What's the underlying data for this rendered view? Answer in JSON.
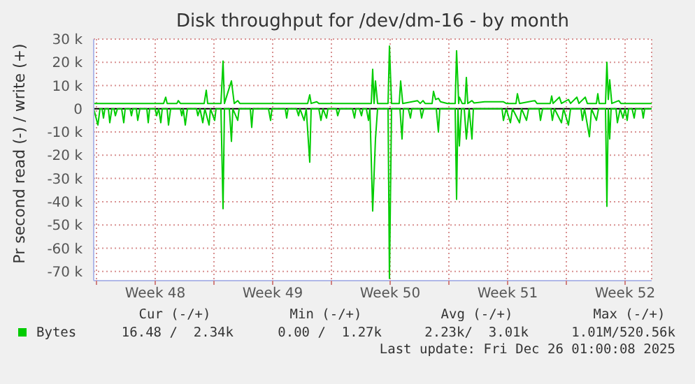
{
  "chart_data": {
    "type": "line",
    "title": "Disk throughput for /dev/dm-16 - by month",
    "ylabel": "Pr second read (-) / write (+)",
    "xlim": [
      "2025-11-23T20:00",
      "2025-12-27T02:00"
    ],
    "xticks": [
      {
        "value": "2025-11-24",
        "label": null
      },
      {
        "value": "2025-11-27T12:00",
        "label": "Week 48"
      },
      {
        "value": "2025-12-01",
        "label": null
      },
      {
        "value": "2025-12-04T12:00",
        "label": "Week 49"
      },
      {
        "value": "2025-12-08",
        "label": null
      },
      {
        "value": "2025-12-11T12:00",
        "label": "Week 50"
      },
      {
        "value": "2025-12-15",
        "label": null
      },
      {
        "value": "2025-12-18T12:00",
        "label": "Week 51"
      },
      {
        "value": "2025-12-22",
        "label": null
      },
      {
        "value": "2025-12-25T12:00",
        "label": "Week 52"
      }
    ],
    "ylim": [
      -74000,
      30000
    ],
    "yticks": [
      {
        "value": 30000,
        "label": "30 k"
      },
      {
        "value": 20000,
        "label": "20 k"
      },
      {
        "value": 10000,
        "label": "10 k"
      },
      0,
      {
        "value": -10000,
        "label": "-10 k"
      },
      {
        "value": -20000,
        "label": "-20 k"
      },
      {
        "value": -30000,
        "label": "-30 k"
      },
      {
        "value": -40000,
        "label": "-40 k"
      },
      {
        "value": -50000,
        "label": "-50 k"
      },
      {
        "value": -60000,
        "label": "-60 k"
      },
      {
        "value": -70000,
        "label": "-70 k"
      }
    ],
    "grid": true,
    "legend": "bottom",
    "marker": "none",
    "line_style": "solid",
    "ref_lines": [
      {
        "axis": "y",
        "value": 0,
        "color": "#000000"
      }
    ],
    "annotations": [
      "Cur (-/+)",
      "Min (-/+)",
      "Avg (-/+)",
      "Max (-/+)",
      "16.48 /  2.34k",
      "0.00 /  1.27k",
      "2.23k/  3.01k",
      "1.01M/520.56k",
      "Last update: Fri Dec 26 01:00:08 2025"
    ],
    "series": [
      {
        "color": "#00cc00",
        "x": [
          "2025-11-23T20:00",
          "2025-11-24T02:00",
          "2025-11-24T05:00",
          "2025-11-24T08:00",
          "2025-11-24T10:00",
          "2025-11-24T12:00",
          "2025-11-24T17:00",
          "2025-11-24T19:00",
          "2025-11-24T22:00",
          "2025-11-25T01:00",
          "2025-11-25T03:00",
          "2025-11-25T06:00",
          "2025-11-25T12:00",
          "2025-11-25T15:00",
          "2025-11-25T17:00",
          "2025-11-26T00:00",
          "2025-11-26T02:00",
          "2025-11-26T04:00",
          "2025-11-26T09:00",
          "2025-11-26T11:00",
          "2025-11-26T14:00",
          "2025-11-27T00:00",
          "2025-11-27T02:00",
          "2025-11-27T04:00",
          "2025-11-27T12:00",
          "2025-11-27T14:00",
          "2025-11-27T17:00",
          "2025-11-27T20:00",
          "2025-11-27T22:00",
          "2025-11-28T05:00",
          "2025-11-28T07:00",
          "2025-11-28T10:00",
          "2025-11-29T00:00",
          "2025-11-29T02:00",
          "2025-11-29T04:00",
          "2025-11-29T07:00",
          "2025-11-29T10:00",
          "2025-11-29T23:00",
          "2025-11-30T01:00",
          "2025-11-30T04:00",
          "2025-11-30T08:00",
          "2025-11-30T11:00",
          "2025-11-30T17:00",
          "2025-11-30T19:00",
          "2025-12-01T01:00",
          "2025-12-01T03:00",
          "2025-12-01T10:00",
          "2025-12-01T13:00",
          "2025-12-01T15:00",
          "2025-12-01T22:00",
          "2025-12-02T01:00",
          "2025-12-02T03:00",
          "2025-12-02T10:00",
          "2025-12-02T12:00",
          "2025-12-03T04:00",
          "2025-12-03T06:00",
          "2025-12-03T08:00",
          "2025-12-04T06:00",
          "2025-12-04T09:00",
          "2025-12-04T11:00",
          "2025-12-05T06:00",
          "2025-12-05T08:00",
          "2025-12-05T10:00",
          "2025-12-05T22:00",
          "2025-12-06T01:00",
          "2025-12-06T03:00",
          "2025-12-06T09:00",
          "2025-12-06T12:00",
          "2025-12-06T17:00",
          "2025-12-06T19:00",
          "2025-12-07T06:00",
          "2025-12-07T09:00",
          "2025-12-07T12:00",
          "2025-12-07T17:00",
          "2025-12-07T19:00",
          "2025-12-08T07:00",
          "2025-12-08T09:00",
          "2025-12-08T12:00",
          "2025-12-09T06:00",
          "2025-12-09T09:00",
          "2025-12-09T11:00",
          "2025-12-09T16:00",
          "2025-12-09T19:00",
          "2025-12-09T21:00",
          "2025-12-10T02:00",
          "2025-12-10T05:00",
          "2025-12-10T07:00",
          "2025-12-10T11:00",
          "2025-12-10T15:00",
          "2025-12-10T18:00",
          "2025-12-11T09:00",
          "2025-12-11T11:00",
          "2025-12-11T14:00",
          "2025-12-12T02:00",
          "2025-12-12T05:00",
          "2025-12-12T07:00",
          "2025-12-12T14:00",
          "2025-12-12T17:00",
          "2025-12-12T19:00",
          "2025-12-13T07:00",
          "2025-12-13T09:00",
          "2025-12-13T12:00",
          "2025-12-14T06:00",
          "2025-12-14T09:00",
          "2025-12-14T11:00",
          "2025-12-15T09:00",
          "2025-12-15T11:00",
          "2025-12-15T13:00",
          "2025-12-15T15:00",
          "2025-12-15T18:00",
          "2025-12-15T22:00",
          "2025-12-16T01:00",
          "2025-12-16T05:00",
          "2025-12-16T09:00",
          "2025-12-16T11:00",
          "2025-12-18T04:00",
          "2025-12-18T06:00",
          "2025-12-18T10:00",
          "2025-12-18T16:00",
          "2025-12-18T19:00",
          "2025-12-19T05:00",
          "2025-12-19T08:00",
          "2025-12-19T15:00",
          "2025-12-19T18:00",
          "2025-12-20T09:00",
          "2025-12-20T11:00",
          "2025-12-20T14:00",
          "2025-12-21T02:00",
          "2025-12-21T04:00",
          "2025-12-21T07:00",
          "2025-12-21T17:00",
          "2025-12-21T20:00",
          "2025-12-22T03:00",
          "2025-12-22T06:00",
          "2025-12-22T21:00",
          "2025-12-22T23:00",
          "2025-12-23T02:00",
          "2025-12-23T09:00",
          "2025-12-23T12:00",
          "2025-12-23T19:00",
          "2025-12-23T22:00",
          "2025-12-24T08:00",
          "2025-12-24T10:00",
          "2025-12-24T12:00",
          "2025-12-24T14:00",
          "2025-12-24T16:00",
          "2025-12-24T23:00",
          "2025-12-25T01:00",
          "2025-12-25T05:00",
          "2025-12-25T09:00",
          "2025-12-25T12:00",
          "2025-12-25T15:00",
          "2025-12-25T17:00",
          "2025-12-25T22:00",
          "2025-12-26T01:00",
          "2025-12-26T03:00",
          "2025-12-26T12:00",
          "2025-12-26T14:00",
          "2025-12-26T16:00",
          "2025-12-27T02:00"
        ],
        "values": [
          0,
          -7000,
          0,
          0,
          -4000,
          0,
          0,
          -6000,
          0,
          0,
          -3000,
          0,
          0,
          -6000,
          0,
          0,
          -3000,
          0,
          0,
          -5000,
          0,
          0,
          -6000,
          0,
          0,
          -3000,
          0,
          -6000,
          0,
          0,
          -7000,
          0,
          0,
          -3000,
          0,
          -7000,
          0,
          0,
          -3000,
          0,
          -6000,
          0,
          -7000,
          0,
          -5000,
          0,
          0,
          -43000,
          0,
          0,
          -14000,
          0,
          -5000,
          0,
          0,
          -8000,
          0,
          0,
          -5000,
          0,
          0,
          -4000,
          0,
          0,
          -3000,
          0,
          -5000,
          0,
          -23000,
          0,
          0,
          -5000,
          0,
          -4000,
          0,
          0,
          -3000,
          0,
          0,
          -4000,
          0,
          0,
          -3000,
          0,
          0,
          -5000,
          0,
          -44000,
          -13000,
          0,
          0,
          -73000,
          0,
          0,
          -13000,
          0,
          0,
          -4000,
          0,
          0,
          -4000,
          0,
          0,
          -10000,
          0,
          0,
          -39000,
          0,
          -16000,
          0,
          0,
          -13000,
          0,
          -13000,
          0,
          0,
          -5000,
          0,
          -6000,
          0,
          -6000,
          0,
          -5000,
          0,
          0,
          -5000,
          0,
          0,
          -5000,
          0,
          -6000,
          0,
          -7000,
          0,
          0,
          -5000,
          0,
          -12000,
          0,
          -5000,
          0,
          0,
          -42000,
          0,
          -13000,
          0,
          0,
          -6000,
          0,
          -4000,
          0,
          -5000,
          0,
          0,
          -4000,
          0,
          0,
          -4000,
          0,
          0
        ]
      },
      {
        "name": "Bytes",
        "color": "#00cc00",
        "x": [
          "2025-11-23T20:00",
          "2025-11-28T00:00",
          "2025-11-28T03:00",
          "2025-11-28T05:00",
          "2025-11-28T19:00",
          "2025-11-28T21:00",
          "2025-11-29T00:00",
          "2025-11-30T10:00",
          "2025-11-30T13:00",
          "2025-11-30T15:00",
          "2025-12-01T10:00",
          "2025-12-01T13:00",
          "2025-12-01T15:00",
          "2025-12-02T01:00",
          "2025-12-02T05:00",
          "2025-12-02T10:00",
          "2025-12-02T13:00",
          "2025-12-06T14:00",
          "2025-12-06T17:00",
          "2025-12-06T19:00",
          "2025-12-07T03:00",
          "2025-12-07T06:00",
          "2025-12-10T09:00",
          "2025-12-10T11:00",
          "2025-12-10T13:00",
          "2025-12-10T15:00",
          "2025-12-10T18:00",
          "2025-12-11T09:00",
          "2025-12-11T11:00",
          "2025-12-11T14:00",
          "2025-12-12T01:00",
          "2025-12-12T03:00",
          "2025-12-12T06:00",
          "2025-12-13T03:00",
          "2025-12-13T07:00",
          "2025-12-13T11:00",
          "2025-12-13T14:00",
          "2025-12-14T00:00",
          "2025-12-14T02:00",
          "2025-12-14T05:00",
          "2025-12-14T09:00",
          "2025-12-14T12:00",
          "2025-12-14T22:00",
          "2025-12-15T09:00",
          "2025-12-15T11:00",
          "2025-12-15T14:00",
          "2025-12-15T15:00",
          "2025-12-15T19:00",
          "2025-12-15T23:00",
          "2025-12-16T01:00",
          "2025-12-16T03:00",
          "2025-12-16T09:00",
          "2025-12-16T12:00",
          "2025-12-17T03:00",
          "2025-12-18T06:00",
          "2025-12-18T10:00",
          "2025-12-19T00:00",
          "2025-12-19T02:00",
          "2025-12-19T05:00",
          "2025-12-20T03:00",
          "2025-12-20T06:00",
          "2025-12-21T01:00",
          "2025-12-21T03:00",
          "2025-12-21T05:00",
          "2025-12-21T14:00",
          "2025-12-21T17:00",
          "2025-12-22T03:00",
          "2025-12-22T06:00",
          "2025-12-22T15:00",
          "2025-12-22T18:00",
          "2025-12-23T03:00",
          "2025-12-23T06:00",
          "2025-12-23T19:00",
          "2025-12-23T21:00",
          "2025-12-23T23:00",
          "2025-12-24T08:00",
          "2025-12-24T10:00",
          "2025-12-24T12:00",
          "2025-12-24T14:00",
          "2025-12-24T17:00",
          "2025-12-25T03:00",
          "2025-12-25T06:00",
          "2025-12-27T02:00"
        ],
        "values": [
          2300,
          2300,
          5000,
          2300,
          2300,
          3500,
          2300,
          2300,
          8000,
          2300,
          2300,
          20500,
          2300,
          12000,
          2300,
          3500,
          2300,
          2300,
          6000,
          2300,
          3000,
          2300,
          2300,
          17000,
          2300,
          12000,
          2300,
          2300,
          27000,
          2300,
          2300,
          12000,
          2300,
          3500,
          2300,
          3500,
          2300,
          2300,
          7500,
          4000,
          4500,
          3000,
          2300,
          2300,
          25000,
          2300,
          5000,
          2300,
          2300,
          13500,
          2300,
          3500,
          2500,
          3000,
          3000,
          2300,
          2300,
          6500,
          2300,
          3500,
          2300,
          2300,
          5500,
          2300,
          5000,
          2300,
          4000,
          2300,
          5000,
          2300,
          5000,
          2300,
          2300,
          6500,
          2300,
          2300,
          20000,
          4000,
          12500,
          2300,
          3500,
          2300,
          2300
        ]
      }
    ]
  }
}
